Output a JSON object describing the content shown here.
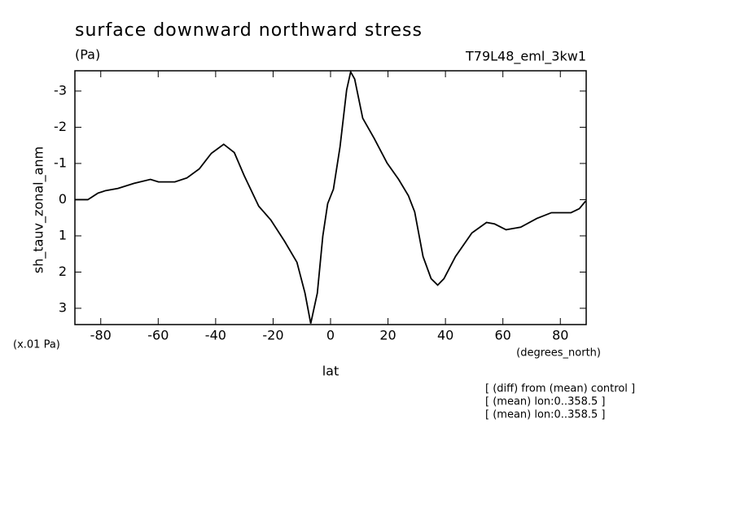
{
  "chart_data": {
    "type": "line",
    "title": "surface downward northward stress",
    "units": "(Pa)",
    "dataset": "T79L48_eml_3kw1",
    "y_label": "sh_tauv_zonal_anm",
    "y_scale_note": "(x.01 Pa)",
    "x_units": "(degrees_north)",
    "x_label": "lat",
    "notes": [
      "[ (diff) from (mean) control ]",
      "[ (mean) lon:0..358.5 ]",
      "[ (mean) lon:0..358.5 ]"
    ],
    "x": [
      -89,
      -84.5,
      -81,
      -78.3,
      -74,
      -68.4,
      -62.7,
      -59.9,
      -54.2,
      -50,
      -45.7,
      -41.5,
      -37.2,
      -33.5,
      -30.1,
      -25,
      -20.8,
      -16,
      -11.7,
      -8.9,
      -6.9,
      -4.6,
      -2.7,
      -1,
      1,
      3.3,
      5.6,
      7,
      8.4,
      11.2,
      15.2,
      19.7,
      23.7,
      27.1,
      29.3,
      32.2,
      35,
      37.3,
      39.5,
      43.5,
      49.2,
      54.3,
      57.1,
      61.1,
      66.2,
      71.8,
      76.9,
      80.3,
      83.7,
      86.6,
      88.8
    ],
    "series": [
      {
        "color": "#000000",
        "values": [
          0,
          0,
          -0.18,
          -0.25,
          -0.31,
          -0.45,
          -0.56,
          -0.49,
          -0.49,
          -0.6,
          -0.85,
          -1.28,
          -1.53,
          -1.3,
          -0.67,
          0.18,
          0.56,
          1.15,
          1.73,
          2.58,
          3.42,
          2.58,
          1.01,
          0.11,
          -0.29,
          -1.46,
          -3.03,
          -3.53,
          -3.33,
          -2.25,
          -1.69,
          -1.01,
          -0.56,
          -0.11,
          0.34,
          1.57,
          2.18,
          2.36,
          2.18,
          1.57,
          0.92,
          0.63,
          0.67,
          0.83,
          0.76,
          0.52,
          0.36,
          0.36,
          0.36,
          0.25,
          0.04
        ]
      }
    ],
    "xlim": [
      -89,
      89
    ],
    "xticks": [
      -80,
      -60,
      -40,
      -20,
      0,
      20,
      40,
      60,
      80
    ],
    "ylim": [
      -3.56,
      3.45
    ],
    "yticks": [
      -3,
      -2,
      -1,
      0,
      1,
      2,
      3
    ],
    "y_inverted": true
  }
}
